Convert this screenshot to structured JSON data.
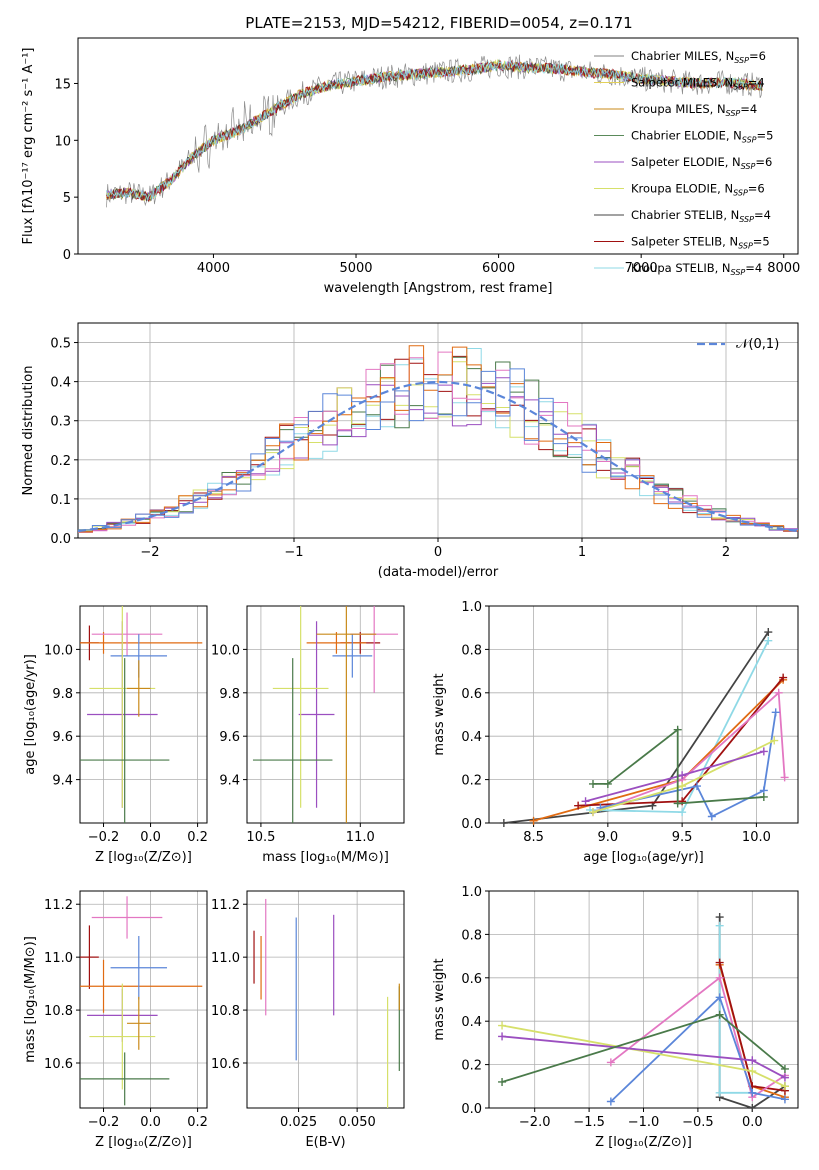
{
  "title": "PLATE=2153, MJD=54212, FIBERID=0054, z=0.171",
  "colors": {
    "Chabrier MILES": "#808080",
    "Salpeter MILES": "#e3d15a",
    "Kroupa MILES": "#c98a1a",
    "Chabrier ELODIE": "#5a8a5a",
    "Salpeter ELODIE": "#9b4fc0",
    "Kroupa ELODIE": "#d6e06a",
    "Chabrier STELIB": "#444444",
    "Salpeter STELIB": "#a01010",
    "Kroupa STELIB": "#8fd9e6",
    "extra_pink": "#e377c2",
    "extra_blue": "#5b86d9",
    "extra_orange": "#e06b12",
    "extra_green": "#4a7a4a",
    "normal": "#5b86d9"
  },
  "chart_data": [
    {
      "type": "line",
      "name": "spectrum",
      "xlabel": "wavelength [Angstrom, rest frame]",
      "ylabel": "Flux [fλ10⁻¹⁷ erg cm⁻² s⁻¹ A⁻¹]",
      "xlim": [
        3050,
        8100
      ],
      "ylim": [
        0,
        19
      ],
      "xticks": [
        4000,
        5000,
        6000,
        7000,
        8000
      ],
      "yticks": [
        0,
        5,
        10,
        15
      ],
      "legend_position": "top-right",
      "legend": [
        "Chabrier MILES, N_SSP=6",
        "Salpeter MILES, N_SSP=4",
        "Kroupa MILES, N_SSP=4",
        "Chabrier ELODIE, N_SSP=5",
        "Salpeter ELODIE, N_SSP=6",
        "Kroupa ELODIE, N_SSP=6",
        "Chabrier STELIB, N_SSP=4",
        "Salpeter STELIB, N_SSP=5",
        "Kroupa STELIB, N_SSP=4"
      ],
      "x": [
        3250,
        3400,
        3550,
        3700,
        3850,
        4000,
        4200,
        4400,
        4600,
        4800,
        5000,
        5200,
        5400,
        5600,
        5800,
        6000,
        6200,
        6400,
        6600,
        6800,
        7000,
        7200,
        7400,
        7600,
        7850
      ],
      "y": [
        5.2,
        5.4,
        5.0,
        6.5,
        8.5,
        10.0,
        11.0,
        12.5,
        14.0,
        14.8,
        15.2,
        15.6,
        15.8,
        16.0,
        16.2,
        16.6,
        16.4,
        16.3,
        16.0,
        15.8,
        15.4,
        15.2,
        15.0,
        15.1,
        14.8
      ]
    },
    {
      "type": "line",
      "name": "residual histogram",
      "xlabel": "(data-model)/error",
      "ylabel": "Normed distribution",
      "xlim": [
        -2.5,
        2.5
      ],
      "ylim": [
        0,
        0.55
      ],
      "xticks": [
        -2,
        -1,
        0,
        1,
        2
      ],
      "yticks": [
        0.0,
        0.1,
        0.2,
        0.3,
        0.4,
        0.5
      ],
      "legend": [
        "𝒩(0,1)"
      ],
      "legend_position": "top-right",
      "grid": true
    },
    {
      "type": "scatter",
      "name": "age vs Z",
      "xlabel": "Z [log₁₀(Z/Z⊙)]",
      "ylabel": "age  [log₁₀(age/yr)]",
      "xlim": [
        -0.3,
        0.24
      ],
      "ylim": [
        9.2,
        10.2
      ],
      "xticks": [
        -0.2,
        0.0,
        0.2
      ],
      "yticks": [
        9.4,
        9.6,
        9.8,
        10.0
      ],
      "points": [
        {
          "x": -0.26,
          "y": 10.03,
          "xerr": 0.04,
          "yerr": 0.08
        },
        {
          "x": -0.2,
          "y": 10.03,
          "xerr": 0.42,
          "yerr": 0.05
        },
        {
          "x": -0.1,
          "y": 10.07,
          "xerr": 0.15,
          "yerr": 0.1
        },
        {
          "x": -0.05,
          "y": 9.97,
          "xerr": 0.12,
          "yerr": 0.1
        },
        {
          "x": -0.12,
          "y": 9.7,
          "xerr": 0.15,
          "yerr": 0.43
        },
        {
          "x": -0.12,
          "y": 9.82,
          "xerr": 0.14,
          "yerr": 0.55
        },
        {
          "x": -0.11,
          "y": 9.49,
          "xerr": 0.19,
          "yerr": 0.47
        },
        {
          "x": -0.05,
          "y": 9.82,
          "xerr": 0.05,
          "yerr": 0.13
        }
      ]
    },
    {
      "type": "scatter",
      "name": "age vs mass",
      "xlabel": "mass [log₁₀(M/M⊙)]",
      "xlim": [
        10.43,
        11.22
      ],
      "ylim": [
        9.2,
        10.2
      ],
      "xticks": [
        10.5,
        11.0
      ],
      "yticks": [
        9.4,
        9.6,
        9.8,
        10.0
      ],
      "points": [
        {
          "x": 11.0,
          "y": 10.03,
          "xerr": 0.1,
          "yerr": 0.05
        },
        {
          "x": 10.88,
          "y": 10.03,
          "xerr": 0.15,
          "yerr": 0.05
        },
        {
          "x": 11.07,
          "y": 10.07,
          "xerr": 0.12,
          "yerr": 0.27
        },
        {
          "x": 10.96,
          "y": 9.97,
          "xerr": 0.1,
          "yerr": 0.1
        },
        {
          "x": 10.78,
          "y": 9.7,
          "xerr": 0.09,
          "yerr": 0.43
        },
        {
          "x": 10.7,
          "y": 9.82,
          "xerr": 0.14,
          "yerr": 0.55
        },
        {
          "x": 10.66,
          "y": 9.49,
          "xerr": 0.2,
          "yerr": 0.47
        },
        {
          "x": 10.93,
          "y": 10.07,
          "xerr": 0.15,
          "yerr": 0.9
        }
      ]
    },
    {
      "type": "line",
      "name": "mass weight vs age",
      "xlabel": "age  [log₁₀(age/yr)]",
      "ylabel": "mass weight",
      "xlim": [
        8.2,
        10.28
      ],
      "ylim": [
        0,
        1.0
      ],
      "xticks": [
        8.5,
        9.0,
        9.5,
        10.0
      ],
      "yticks": [
        0.0,
        0.2,
        0.4,
        0.6,
        0.8,
        1.0
      ],
      "series": [
        {
          "color": "#444444",
          "x": [
            8.3,
            9.3,
            10.08
          ],
          "y": [
            0.0,
            0.08,
            0.88
          ]
        },
        {
          "color": "#8fd9e6",
          "x": [
            8.88,
            9.5,
            10.08
          ],
          "y": [
            0.06,
            0.05,
            0.84
          ]
        },
        {
          "color": "#e06b12",
          "x": [
            8.5,
            9.5,
            10.18
          ],
          "y": [
            0.01,
            0.2,
            0.66
          ]
        },
        {
          "color": "#a01010",
          "x": [
            8.8,
            9.5,
            10.18
          ],
          "y": [
            0.08,
            0.1,
            0.67
          ]
        },
        {
          "color": "#e377c2",
          "x": [
            8.9,
            9.5,
            10.15,
            10.19
          ],
          "y": [
            0.05,
            0.2,
            0.6,
            0.21
          ]
        },
        {
          "color": "#5b86d9",
          "x": [
            8.95,
            9.6,
            9.7,
            10.05,
            10.13
          ],
          "y": [
            0.07,
            0.17,
            0.03,
            0.15,
            0.51
          ]
        },
        {
          "color": "#d6e06a",
          "x": [
            8.9,
            9.5,
            10.12
          ],
          "y": [
            0.05,
            0.17,
            0.38
          ]
        },
        {
          "color": "#9b4fc0",
          "x": [
            8.85,
            9.5,
            10.05
          ],
          "y": [
            0.1,
            0.22,
            0.33
          ]
        },
        {
          "color": "#4a7a4a",
          "x": [
            8.9,
            9.0,
            9.47,
            9.47,
            10.05
          ],
          "y": [
            0.18,
            0.18,
            0.43,
            0.09,
            0.12
          ]
        }
      ]
    },
    {
      "type": "scatter",
      "name": "mass vs Z",
      "xlabel": "Z [log₁₀(Z/Z⊙)]",
      "ylabel": "mass [log₁₀(M/M⊙)]",
      "xlim": [
        -0.3,
        0.24
      ],
      "ylim": [
        10.43,
        11.25
      ],
      "xticks": [
        -0.2,
        0.0,
        0.2
      ],
      "yticks": [
        10.6,
        10.8,
        11.0,
        11.2
      ],
      "points": [
        {
          "x": -0.26,
          "y": 11.0,
          "xerr": 0.04,
          "yerr": 0.12
        },
        {
          "x": -0.2,
          "y": 10.89,
          "xerr": 0.42,
          "yerr": 0.1
        },
        {
          "x": -0.1,
          "y": 11.15,
          "xerr": 0.15,
          "yerr": 0.08
        },
        {
          "x": -0.05,
          "y": 10.96,
          "xerr": 0.12,
          "yerr": 0.12
        },
        {
          "x": -0.12,
          "y": 10.78,
          "xerr": 0.15,
          "yerr": 0.1
        },
        {
          "x": -0.12,
          "y": 10.7,
          "xerr": 0.14,
          "yerr": 0.2
        },
        {
          "x": -0.11,
          "y": 10.54,
          "xerr": 0.19,
          "yerr": 0.1
        },
        {
          "x": -0.05,
          "y": 10.75,
          "xerr": 0.05,
          "yerr": 0.1
        }
      ]
    },
    {
      "type": "scatter",
      "name": "mass vs E(B-V)",
      "xlabel": "E(B-V)",
      "xlim": [
        0.003,
        0.07
      ],
      "ylim": [
        10.43,
        11.25
      ],
      "xticks": [
        0.025,
        0.05
      ],
      "yticks": [
        10.6,
        10.8,
        11.0,
        11.2
      ],
      "points": [
        {
          "x": 0.006,
          "y": 11.0,
          "yerr": 0.1
        },
        {
          "x": 0.009,
          "y": 10.96,
          "yerr": 0.12
        },
        {
          "x": 0.011,
          "y": 11.0,
          "yerr": 0.22
        },
        {
          "x": 0.024,
          "y": 10.88,
          "yerr": 0.27
        },
        {
          "x": 0.04,
          "y": 10.97,
          "yerr": 0.19
        },
        {
          "x": 0.063,
          "y": 10.6,
          "yerr": 0.25
        },
        {
          "x": 0.068,
          "y": 10.73,
          "yerr": 0.16
        },
        {
          "x": 0.068,
          "y": 10.85,
          "yerr": 0.05
        }
      ]
    },
    {
      "type": "line",
      "name": "mass weight vs Z",
      "xlabel": "Z [log₁₀(Z/Z⊙)]",
      "ylabel": "mass weight",
      "xlim": [
        -2.42,
        0.42
      ],
      "ylim": [
        0,
        1.0
      ],
      "xticks": [
        -2.0,
        -1.5,
        -1.0,
        -0.5,
        0.0
      ],
      "yticks": [
        0.0,
        0.2,
        0.4,
        0.6,
        0.8,
        1.0
      ],
      "series": [
        {
          "color": "#444444",
          "x": [
            -0.3,
            -0.3,
            0.0,
            0.3
          ],
          "y": [
            0.88,
            0.05,
            0.0,
            0.1
          ]
        },
        {
          "color": "#8fd9e6",
          "x": [
            -0.3,
            -0.3,
            0.0
          ],
          "y": [
            0.84,
            0.07,
            0.07
          ]
        },
        {
          "color": "#e06b12",
          "x": [
            -0.3,
            0.0,
            0.3
          ],
          "y": [
            0.66,
            0.1,
            0.05
          ]
        },
        {
          "color": "#a01010",
          "x": [
            -0.3,
            0.0,
            0.3
          ],
          "y": [
            0.67,
            0.1,
            0.08
          ]
        },
        {
          "color": "#e377c2",
          "x": [
            -1.3,
            -0.3,
            0.0,
            0.3
          ],
          "y": [
            0.21,
            0.6,
            0.05,
            0.15
          ]
        },
        {
          "color": "#5b86d9",
          "x": [
            -1.3,
            -0.3,
            0.0,
            0.3
          ],
          "y": [
            0.03,
            0.51,
            0.07,
            0.04
          ]
        },
        {
          "color": "#d6e06a",
          "x": [
            -2.3,
            0.0,
            0.3
          ],
          "y": [
            0.38,
            0.17,
            0.1
          ]
        },
        {
          "color": "#9b4fc0",
          "x": [
            -2.3,
            0.0,
            0.3
          ],
          "y": [
            0.33,
            0.22,
            0.14
          ]
        },
        {
          "color": "#4a7a4a",
          "x": [
            -2.3,
            -0.3,
            0.3
          ],
          "y": [
            0.12,
            0.43,
            0.18
          ]
        }
      ]
    }
  ]
}
